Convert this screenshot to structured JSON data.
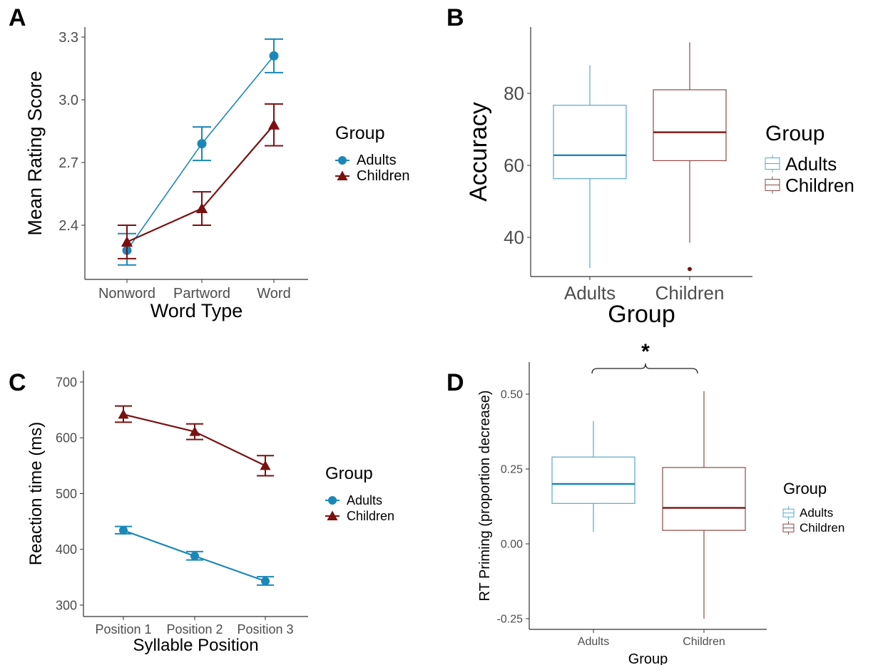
{
  "colors": {
    "adults": "#1b87b8",
    "children": "#7a1010",
    "adults_box": "#5aa8c8",
    "children_box": "#8c4a48",
    "axis": "#333333"
  },
  "chart_data": [
    {
      "panel": "A",
      "type": "line",
      "xlabel": "Word Type",
      "ylabel": "Mean Rating Score",
      "categories": [
        "Nonword",
        "Partword",
        "Word"
      ],
      "yticks": [
        "2.4",
        "2.7",
        "3.0",
        "3.3"
      ],
      "ylim": [
        2.1,
        3.31
      ],
      "legend": {
        "title": "Group",
        "placement": "right"
      },
      "series": [
        {
          "name": "Adults",
          "marker": "circle",
          "values": [
            2.28,
            2.79,
            3.21
          ],
          "err_low": [
            2.21,
            2.71,
            3.13
          ],
          "err_high": [
            2.36,
            2.87,
            3.29
          ]
        },
        {
          "name": "Children",
          "marker": "triangle",
          "values": [
            2.32,
            2.48,
            2.88
          ],
          "err_low": [
            2.24,
            2.4,
            2.78
          ],
          "err_high": [
            2.4,
            2.56,
            2.98
          ]
        }
      ]
    },
    {
      "panel": "B",
      "type": "box",
      "xlabel": "Group",
      "ylabel": "Accuracy",
      "categories": [
        "Adults",
        "Children"
      ],
      "yticks": [
        "40",
        "60",
        "80"
      ],
      "ylim": [
        30,
        95
      ],
      "legend": {
        "title": "Group",
        "placement": "right"
      },
      "boxes": [
        {
          "name": "Adults",
          "min": 31.5,
          "q1": 56.3,
          "median": 62.8,
          "q3": 76.7,
          "max": 87.8,
          "outliers": []
        },
        {
          "name": "Children",
          "min": 38.5,
          "q1": 61.3,
          "median": 69.2,
          "q3": 81.0,
          "max": 94.2,
          "outliers": [
            31.2
          ]
        }
      ]
    },
    {
      "panel": "C",
      "type": "line",
      "xlabel": "Syllable Position",
      "ylabel": "Reaction time (ms)",
      "categories": [
        "Position 1",
        "Position 2",
        "Position 3"
      ],
      "yticks": [
        "300",
        "400",
        "500",
        "600",
        "700"
      ],
      "ylim": [
        280,
        720
      ],
      "legend": {
        "title": "Group",
        "placement": "right"
      },
      "series": [
        {
          "name": "Adults",
          "marker": "circle",
          "values": [
            434,
            388,
            343
          ],
          "err_low": [
            428,
            381,
            336
          ],
          "err_high": [
            441,
            396,
            351
          ]
        },
        {
          "name": "Children",
          "marker": "triangle",
          "values": [
            642,
            611,
            550
          ],
          "err_low": [
            628,
            597,
            532
          ],
          "err_high": [
            657,
            625,
            568
          ]
        }
      ]
    },
    {
      "panel": "D",
      "type": "box",
      "xlabel": "Group",
      "ylabel": "RT Priming (proportion decrease)",
      "categories": [
        "Adults",
        "Children"
      ],
      "yticks": [
        "-0.25",
        "0.00",
        "0.25",
        "0.50"
      ],
      "ylim": [
        -0.28,
        0.56
      ],
      "legend": {
        "title": "Group",
        "placement": "right"
      },
      "annotation": "*",
      "boxes": [
        {
          "name": "Adults",
          "min": 0.04,
          "q1": 0.135,
          "median": 0.2,
          "q3": 0.29,
          "max": 0.41,
          "outliers": []
        },
        {
          "name": "Children",
          "min": -0.25,
          "q1": 0.045,
          "median": 0.12,
          "q3": 0.255,
          "max": 0.51,
          "outliers": []
        }
      ]
    }
  ]
}
